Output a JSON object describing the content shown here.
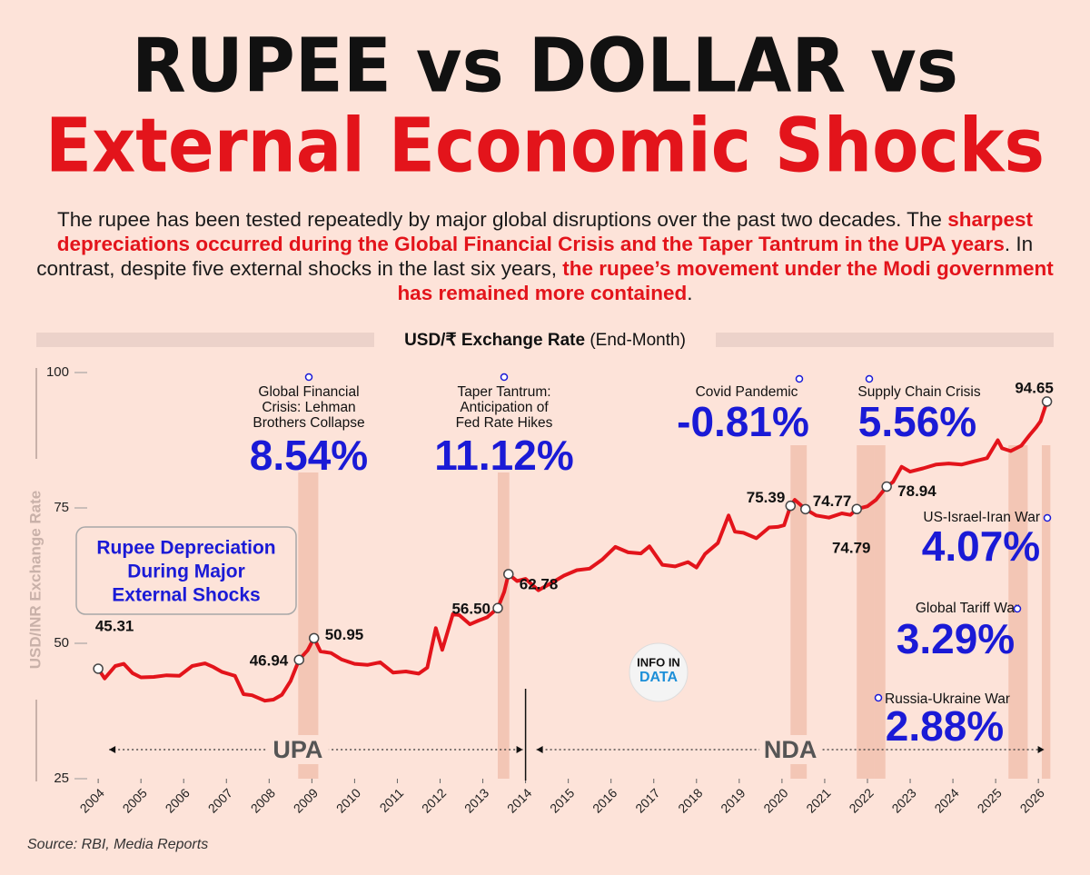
{
  "chart_data": {
    "type": "line",
    "headline": [
      "RUPEE vs DOLLAR vs",
      "External Economic Shocks"
    ],
    "subtitle": [
      {
        "text": "The rupee has been tested repeatedly by major global disruptions over the past two decades. The ",
        "color": "#1a1a1a"
      },
      {
        "text": "sharpest depreciations occurred during the Global Financial Crisis and the Taper Tantrum in the UPA years",
        "color": "#e3141b"
      },
      {
        "text": ". In contrast, despite five external shocks in the last six years, ",
        "color": "#1a1a1a"
      },
      {
        "text": "the rupee’s movement under the Modi government has remained more contained",
        "color": "#e3141b"
      },
      {
        "text": ".",
        "color": "#1a1a1a"
      }
    ],
    "title": "USD/₹ Exchange Rate",
    "title_note": "(End-Month)",
    "y_label": "USD/INR Exchange Rate",
    "legend_box": [
      "Rupee Depreciation",
      "During Major",
      "External Shocks"
    ],
    "logo": [
      "INFO IN",
      "DATA"
    ],
    "source": "Source: RBI, Media Reports",
    "xlim": [
      2003.7,
      2026.4
    ],
    "xticks": [
      2004,
      2005,
      2006,
      2007,
      2008,
      2009,
      2010,
      2011,
      2012,
      2013,
      2014,
      2015,
      2016,
      2017,
      2018,
      2019,
      2020,
      2021,
      2022,
      2023,
      2024,
      2025,
      2026
    ],
    "ylim": [
      25,
      100
    ],
    "yticks": [
      25,
      50,
      75,
      100
    ],
    "series": [
      {
        "name": "USD/INR",
        "color": "#e3141b",
        "x": [
          2004.0,
          2004.15,
          2004.4,
          2004.6,
          2004.8,
          2005.0,
          2005.3,
          2005.6,
          2005.9,
          2006.2,
          2006.5,
          2006.7,
          2006.9,
          2007.2,
          2007.4,
          2007.6,
          2007.9,
          2008.1,
          2008.3,
          2008.5,
          2008.7,
          2008.9,
          2009.05,
          2009.2,
          2009.45,
          2009.7,
          2010.0,
          2010.3,
          2010.6,
          2010.9,
          2011.2,
          2011.5,
          2011.7,
          2011.9,
          2012.05,
          2012.3,
          2012.45,
          2012.7,
          2012.9,
          2013.1,
          2013.35,
          2013.5,
          2013.6,
          2013.8,
          2014.0,
          2014.3,
          2014.6,
          2014.9,
          2015.2,
          2015.5,
          2015.8,
          2016.1,
          2016.4,
          2016.7,
          2016.9,
          2017.2,
          2017.5,
          2017.8,
          2018.0,
          2018.2,
          2018.5,
          2018.75,
          2018.9,
          2019.1,
          2019.4,
          2019.7,
          2019.9,
          2020.05,
          2020.2,
          2020.3,
          2020.55,
          2020.8,
          2021.1,
          2021.4,
          2021.6,
          2021.75,
          2022.0,
          2022.2,
          2022.45,
          2022.6,
          2022.8,
          2023.0,
          2023.3,
          2023.6,
          2023.9,
          2024.2,
          2024.5,
          2024.8,
          2025.05,
          2025.15,
          2025.35,
          2025.6,
          2025.8,
          2025.95,
          2026.05,
          2026.2
        ],
        "values": [
          45.31,
          43.5,
          45.8,
          46.2,
          44.5,
          43.7,
          43.8,
          44.1,
          44.0,
          45.8,
          46.3,
          45.6,
          44.7,
          44.0,
          40.6,
          40.4,
          39.4,
          39.6,
          40.5,
          43.0,
          46.94,
          48.7,
          50.95,
          48.5,
          48.2,
          47.0,
          46.2,
          46.0,
          46.5,
          44.6,
          44.8,
          44.4,
          45.5,
          52.8,
          48.8,
          55.4,
          55.2,
          53.5,
          54.2,
          54.8,
          56.5,
          59.5,
          62.78,
          61.5,
          61.9,
          59.8,
          61.1,
          62.5,
          63.5,
          63.8,
          65.5,
          67.8,
          66.8,
          66.6,
          67.9,
          64.5,
          64.2,
          65.0,
          64.0,
          66.5,
          68.5,
          73.6,
          70.6,
          70.4,
          69.4,
          71.4,
          71.5,
          71.8,
          75.39,
          76.5,
          74.77,
          73.6,
          73.2,
          74.0,
          73.7,
          74.79,
          75.3,
          76.5,
          78.94,
          79.8,
          82.6,
          81.7,
          82.3,
          83.0,
          83.2,
          83.0,
          83.6,
          84.2,
          87.5,
          86.0,
          85.5,
          86.5,
          88.5,
          89.9,
          91.0,
          94.65
        ]
      }
    ],
    "point_labels": [
      {
        "x": 2004.0,
        "value": 45.31,
        "label": "45.31"
      },
      {
        "x": 2008.7,
        "value": 46.94,
        "label": "46.94"
      },
      {
        "x": 2009.05,
        "value": 50.95,
        "label": "50.95"
      },
      {
        "x": 2013.35,
        "value": 56.5,
        "label": "56.50"
      },
      {
        "x": 2013.6,
        "value": 62.78,
        "label": "62.78"
      },
      {
        "x": 2020.2,
        "value": 75.39,
        "label": "75.39"
      },
      {
        "x": 2020.55,
        "value": 74.77,
        "label": "74.77"
      },
      {
        "x": 2021.75,
        "value": 74.79,
        "label": "74.79"
      },
      {
        "x": 2022.45,
        "value": 78.94,
        "label": "78.94"
      },
      {
        "x": 2026.2,
        "value": 94.65,
        "label": "94.65"
      }
    ],
    "events": [
      {
        "name": [
          "Global Financial",
          "Crisis: Lehman",
          "Brothers Collapse"
        ],
        "change": "8.54%",
        "start": 2008.68,
        "end": 2009.15
      },
      {
        "name": [
          "Taper Tantrum:",
          "Anticipation of",
          "Fed Rate Hikes"
        ],
        "change": "11.12%",
        "start": 2013.35,
        "end": 2013.62
      },
      {
        "name": [
          "Covid Pandemic"
        ],
        "change": "-0.81%",
        "start": 2020.2,
        "end": 2020.58
      },
      {
        "name": [
          "Supply Chain Crisis"
        ],
        "change": "5.56%",
        "start": 2021.75,
        "end": 2022.15
      },
      {
        "name": [
          "Russia-Ukraine War"
        ],
        "change": "2.88%",
        "start": 2022.15,
        "end": 2022.42
      },
      {
        "name": [
          "Global Tariff War"
        ],
        "change": "3.29%",
        "start": 2025.3,
        "end": 2025.75
      },
      {
        "name": [
          "US-Israel-Iran War"
        ],
        "change": "4.07%",
        "start": 2026.08,
        "end": 2026.28
      }
    ],
    "periods": [
      {
        "name": "UPA",
        "start": 2004,
        "end": 2014
      },
      {
        "name": "NDA",
        "start": 2014,
        "end": 2026.2
      }
    ]
  }
}
